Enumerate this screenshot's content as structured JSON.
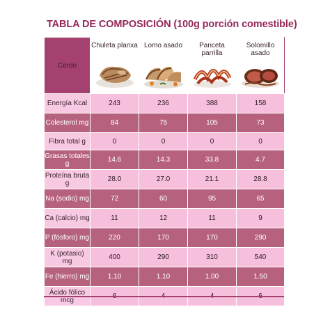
{
  "title": "TABLA DE COMPOSICIÓN (100g porción comestible)",
  "header": {
    "corner": "Cerdo",
    "foods": [
      {
        "label": "Chuleta planxa",
        "image": "grilled-pork-chop"
      },
      {
        "label": "Lomo asado",
        "image": "roasted-pork-loin"
      },
      {
        "label": "Panceta parrilla",
        "image": "grilled-bacon"
      },
      {
        "label": "Solomillo asado",
        "image": "roasted-tenderloin"
      }
    ]
  },
  "rows": [
    {
      "nutrient": "Energía Kcal",
      "values": [
        "243",
        "236",
        "388",
        "158"
      ],
      "tone": "light"
    },
    {
      "nutrient": "Colesterol mg",
      "values": [
        "84",
        "75",
        "105",
        "73"
      ],
      "tone": "dark"
    },
    {
      "nutrient": "Fibra total g",
      "values": [
        "0",
        "0",
        "0",
        "0"
      ],
      "tone": "light"
    },
    {
      "nutrient": "Grasas totales g",
      "values": [
        "14.6",
        "14.3",
        "33.8",
        "4.7"
      ],
      "tone": "dark"
    },
    {
      "nutrient": "Proteína bruta g",
      "values": [
        "28.0",
        "27.0",
        "21.1",
        "28.8"
      ],
      "tone": "light"
    },
    {
      "nutrient": "Na (sodio) mg",
      "values": [
        "72",
        "60",
        "95",
        "65"
      ],
      "tone": "dark"
    },
    {
      "nutrient": "Ca (calcio) mg",
      "values": [
        "11",
        "12",
        "11",
        "9"
      ],
      "tone": "light"
    },
    {
      "nutrient": "P (fósforo) mg",
      "values": [
        "220",
        "170",
        "170",
        "290"
      ],
      "tone": "dark"
    },
    {
      "nutrient": "K (potasio) mg",
      "values": [
        "400",
        "290",
        "310",
        "540"
      ],
      "tone": "light"
    },
    {
      "nutrient": "Fe (hierro) mg",
      "values": [
        "1.10",
        "1.10",
        "1.00",
        "1.50"
      ],
      "tone": "dark"
    },
    {
      "nutrient": "Ácido fólico mcg",
      "values": [
        "6",
        "4",
        "4",
        "6"
      ],
      "tone": "light"
    }
  ],
  "colors": {
    "title": "#96285a",
    "header_corner": "#a5416e",
    "row_light": "#f6bfdc",
    "row_dark": "#b6627f"
  }
}
